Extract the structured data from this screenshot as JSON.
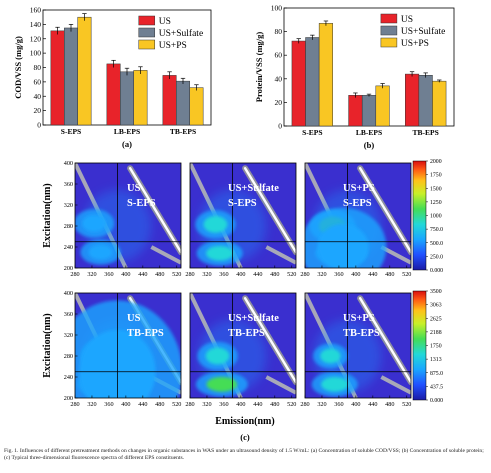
{
  "chart_data": [
    {
      "type": "bar",
      "panel_label": "(a)",
      "ylabel": "COD/VSS (mg/g)",
      "ylim": [
        0,
        160
      ],
      "yticks": [
        0,
        20,
        40,
        60,
        80,
        100,
        120,
        140,
        160
      ],
      "categories": [
        "S-EPS",
        "LB-EPS",
        "TB-EPS"
      ],
      "series": [
        {
          "name": "US",
          "color": "#e8232a",
          "values": [
            131,
            85,
            69
          ],
          "errors": [
            5,
            5,
            5
          ]
        },
        {
          "name": "US+Sulfate",
          "color": "#6f7f92",
          "values": [
            135,
            74,
            61
          ],
          "errors": [
            5,
            5,
            4
          ]
        },
        {
          "name": "US+PS",
          "color": "#f9c623",
          "values": [
            150,
            76,
            52
          ],
          "errors": [
            5,
            5,
            4
          ]
        }
      ],
      "legend_position": "top-right"
    },
    {
      "type": "bar",
      "panel_label": "(b)",
      "ylabel": "Protein/VSS (mg/g)",
      "ylim": [
        0,
        100
      ],
      "yticks": [
        0,
        20,
        40,
        60,
        80,
        100
      ],
      "categories": [
        "S-EPS",
        "LB-EPS",
        "TB-EPS"
      ],
      "series": [
        {
          "name": "US",
          "color": "#e8232a",
          "values": [
            72,
            26,
            44
          ],
          "errors": [
            2,
            2,
            2
          ]
        },
        {
          "name": "US+Sulfate",
          "color": "#6f7f92",
          "values": [
            75,
            26,
            43
          ],
          "errors": [
            2,
            1,
            2
          ]
        },
        {
          "name": "US+PS",
          "color": "#f9c623",
          "values": [
            87,
            34,
            38
          ],
          "errors": [
            2,
            2,
            1
          ]
        }
      ],
      "legend_position": "top-right"
    },
    {
      "type": "heatmap",
      "panel_label": "(c)",
      "xlabel": "Emission(nm)",
      "ylabel": "Excitation(nm)",
      "x_range": [
        280,
        530
      ],
      "y_range": [
        200,
        400
      ],
      "xticks": [
        280,
        320,
        360,
        400,
        440,
        480,
        520
      ],
      "yticks": [
        200,
        240,
        280,
        320,
        360,
        400
      ],
      "rows": [
        {
          "colorbar_ticks": [
            "0.000",
            "250.0",
            "500.0",
            "750.0",
            "1000",
            "1250",
            "1500",
            "1750",
            "2000"
          ],
          "panels": [
            {
              "line1": "US",
              "line2": "S-EPS"
            },
            {
              "line1": "US+Sulfate",
              "line2": "S-EPS"
            },
            {
              "line1": "US+PS",
              "line2": "S-EPS"
            }
          ]
        },
        {
          "colorbar_ticks": [
            "0.000",
            "437.5",
            "875.0",
            "1313",
            "1750",
            "2188",
            "2625",
            "3063",
            "3500"
          ],
          "panels": [
            {
              "line1": "US",
              "line2": "TB-EPS"
            },
            {
              "line1": "US+Sulfate",
              "line2": "TB-EPS"
            },
            {
              "line1": "US+PS",
              "line2": "TB-EPS"
            }
          ]
        }
      ]
    }
  ],
  "caption": "Fig. 1. Influences of different pretreatment methods on changes in organic substances in WAS under an ultrasound density of 1.5 W/mL: (a) Concentration of soluble COD/VSS; (b) Concentration of soluble protein; (c) Typical three-dimensional fluorescence spectra of different EPS constituents."
}
